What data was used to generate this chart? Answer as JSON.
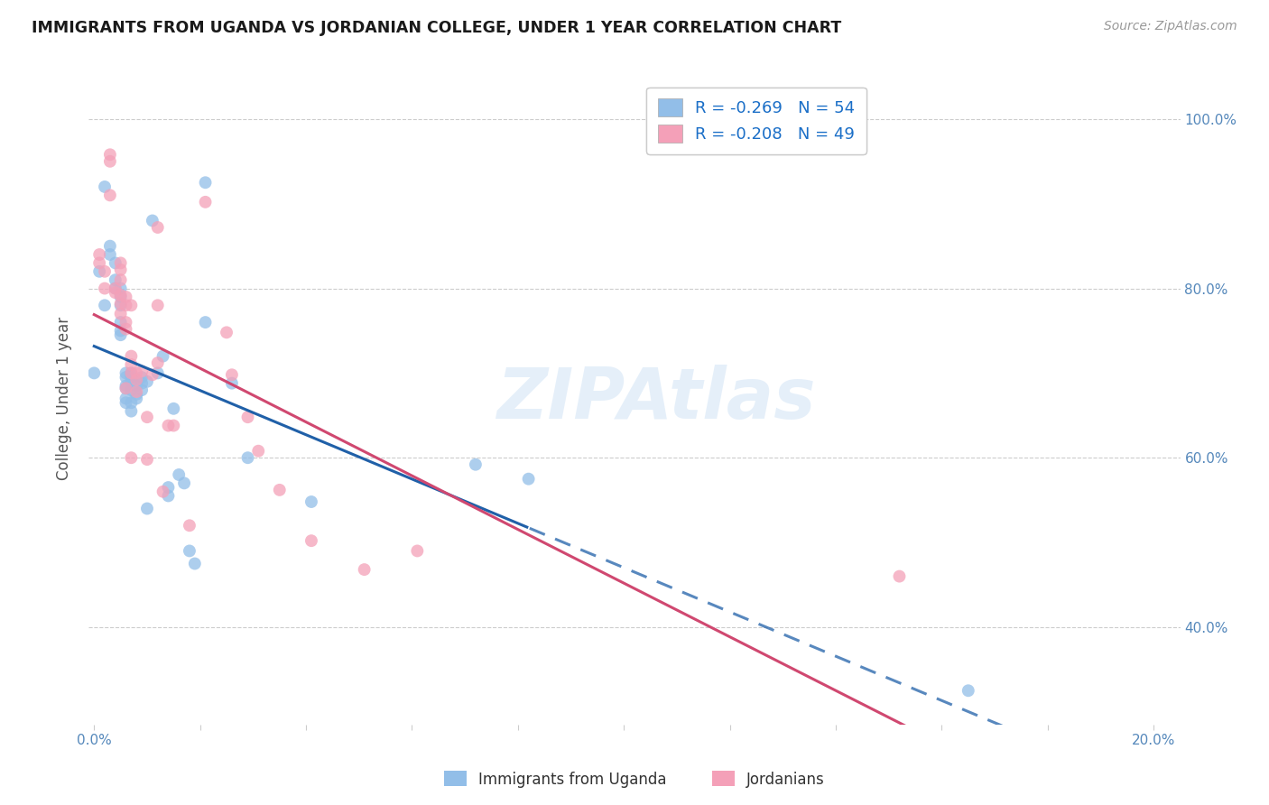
{
  "title": "IMMIGRANTS FROM UGANDA VS JORDANIAN COLLEGE, UNDER 1 YEAR CORRELATION CHART",
  "source": "Source: ZipAtlas.com",
  "ylabel": "College, Under 1 year",
  "xlim": [
    -0.001,
    0.205
  ],
  "ylim": [
    0.285,
    1.055
  ],
  "blue_color": "#92bee8",
  "pink_color": "#f4a0b8",
  "trend_blue": "#2060a8",
  "trend_pink": "#d04870",
  "blue_R": "-0.269",
  "blue_N": "54",
  "pink_R": "-0.208",
  "pink_N": "49",
  "bottom_legend_blue": "Immigrants from Uganda",
  "bottom_legend_pink": "Jordanians",
  "blue_scatter": [
    [
      0.0,
      0.7
    ],
    [
      0.001,
      0.82
    ],
    [
      0.002,
      0.78
    ],
    [
      0.002,
      0.92
    ],
    [
      0.003,
      0.85
    ],
    [
      0.003,
      0.84
    ],
    [
      0.004,
      0.81
    ],
    [
      0.004,
      0.83
    ],
    [
      0.004,
      0.8
    ],
    [
      0.005,
      0.8
    ],
    [
      0.005,
      0.79
    ],
    [
      0.005,
      0.78
    ],
    [
      0.005,
      0.76
    ],
    [
      0.005,
      0.75
    ],
    [
      0.005,
      0.745
    ],
    [
      0.006,
      0.7
    ],
    [
      0.006,
      0.695
    ],
    [
      0.006,
      0.685
    ],
    [
      0.006,
      0.682
    ],
    [
      0.006,
      0.67
    ],
    [
      0.006,
      0.665
    ],
    [
      0.007,
      0.7
    ],
    [
      0.007,
      0.695
    ],
    [
      0.007,
      0.68
    ],
    [
      0.007,
      0.665
    ],
    [
      0.007,
      0.655
    ],
    [
      0.007,
      0.698
    ],
    [
      0.007,
      0.69
    ],
    [
      0.008,
      0.685
    ],
    [
      0.008,
      0.675
    ],
    [
      0.008,
      0.67
    ],
    [
      0.009,
      0.695
    ],
    [
      0.009,
      0.688
    ],
    [
      0.009,
      0.68
    ],
    [
      0.01,
      0.69
    ],
    [
      0.01,
      0.54
    ],
    [
      0.011,
      0.88
    ],
    [
      0.012,
      0.7
    ],
    [
      0.013,
      0.72
    ],
    [
      0.014,
      0.565
    ],
    [
      0.014,
      0.555
    ],
    [
      0.015,
      0.658
    ],
    [
      0.016,
      0.58
    ],
    [
      0.017,
      0.57
    ],
    [
      0.018,
      0.49
    ],
    [
      0.019,
      0.475
    ],
    [
      0.021,
      0.925
    ],
    [
      0.021,
      0.76
    ],
    [
      0.026,
      0.688
    ],
    [
      0.029,
      0.6
    ],
    [
      0.041,
      0.548
    ],
    [
      0.072,
      0.592
    ],
    [
      0.082,
      0.575
    ],
    [
      0.165,
      0.325
    ]
  ],
  "pink_scatter": [
    [
      0.001,
      0.84
    ],
    [
      0.001,
      0.83
    ],
    [
      0.002,
      0.82
    ],
    [
      0.002,
      0.8
    ],
    [
      0.003,
      0.958
    ],
    [
      0.003,
      0.95
    ],
    [
      0.003,
      0.91
    ],
    [
      0.004,
      0.8
    ],
    [
      0.004,
      0.795
    ],
    [
      0.005,
      0.83
    ],
    [
      0.005,
      0.822
    ],
    [
      0.005,
      0.81
    ],
    [
      0.005,
      0.792
    ],
    [
      0.005,
      0.782
    ],
    [
      0.005,
      0.77
    ],
    [
      0.006,
      0.79
    ],
    [
      0.006,
      0.78
    ],
    [
      0.006,
      0.76
    ],
    [
      0.006,
      0.752
    ],
    [
      0.006,
      0.682
    ],
    [
      0.007,
      0.78
    ],
    [
      0.007,
      0.72
    ],
    [
      0.007,
      0.71
    ],
    [
      0.007,
      0.7
    ],
    [
      0.007,
      0.6
    ],
    [
      0.008,
      0.7
    ],
    [
      0.008,
      0.692
    ],
    [
      0.008,
      0.678
    ],
    [
      0.009,
      0.702
    ],
    [
      0.01,
      0.648
    ],
    [
      0.01,
      0.598
    ],
    [
      0.011,
      0.698
    ],
    [
      0.012,
      0.872
    ],
    [
      0.012,
      0.78
    ],
    [
      0.012,
      0.712
    ],
    [
      0.013,
      0.56
    ],
    [
      0.014,
      0.638
    ],
    [
      0.015,
      0.638
    ],
    [
      0.018,
      0.52
    ],
    [
      0.021,
      0.902
    ],
    [
      0.025,
      0.748
    ],
    [
      0.026,
      0.698
    ],
    [
      0.029,
      0.648
    ],
    [
      0.031,
      0.608
    ],
    [
      0.035,
      0.562
    ],
    [
      0.041,
      0.502
    ],
    [
      0.051,
      0.468
    ],
    [
      0.061,
      0.49
    ],
    [
      0.152,
      0.46
    ]
  ]
}
